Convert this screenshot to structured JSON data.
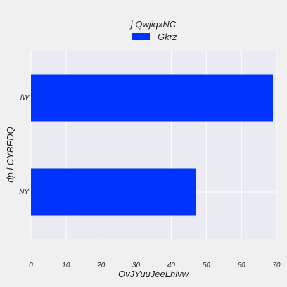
{
  "chart_data": {
    "type": "bar",
    "orientation": "horizontal",
    "categories": [
      "fW",
      "NY"
    ],
    "series": [
      {
        "name": "Gkrz",
        "values": [
          69,
          47
        ],
        "color": "#0033ff"
      }
    ],
    "legend_title": "j QwjiqxNC",
    "xlabel": "OvJYuuJeeLhlvw",
    "ylabel": "dp  l CYBEDQ",
    "xlim": [
      0,
      70
    ],
    "xticks": [
      "0",
      "10",
      "20",
      "30",
      "40",
      "50",
      "60",
      "70"
    ],
    "grid": true,
    "legend_position": "top-center",
    "background": "#eaeaf2"
  }
}
